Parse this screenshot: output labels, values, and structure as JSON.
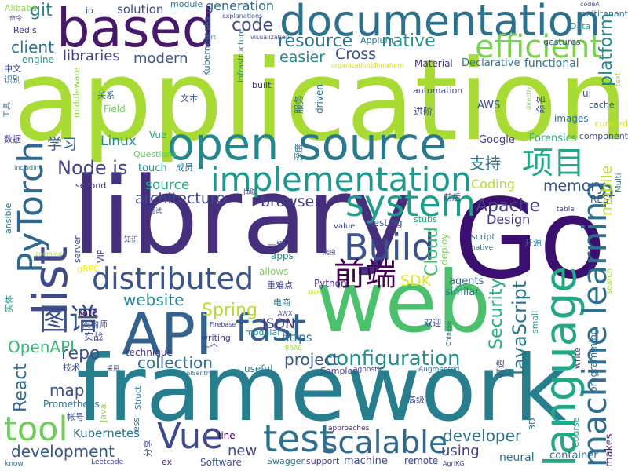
{
  "words": [
    {
      "text": "application",
      "color": "#a8db34"
    },
    {
      "text": "library",
      "color": "#46307e"
    },
    {
      "text": "Go",
      "color": "#3b0f70"
    },
    {
      "text": "framework",
      "color": "#277f8e"
    },
    {
      "text": "web",
      "color": "#4bc16e"
    },
    {
      "text": "documentation",
      "color": "#2c718e"
    },
    {
      "text": "based",
      "color": "#48196b"
    },
    {
      "text": "open",
      "color": "#23888e"
    },
    {
      "text": "source",
      "color": "#2a788e"
    },
    {
      "text": "language",
      "color": "#22a884"
    },
    {
      "text": "API",
      "color": "#33638d"
    },
    {
      "text": "list",
      "color": "#3e4a89"
    },
    {
      "text": "efficient",
      "color": "#7ad151"
    },
    {
      "text": "implementation",
      "color": "#1f988b"
    },
    {
      "text": "machine learning",
      "color": "#2e6f8e"
    },
    {
      "text": "PyTorch",
      "color": "#31688e"
    },
    {
      "text": "Vue",
      "color": "#3e4a89"
    },
    {
      "text": "scalable",
      "color": "#31688e"
    },
    {
      "text": "tool",
      "color": "#6ece58"
    },
    {
      "text": "fast",
      "color": "#355f8d"
    },
    {
      "text": "test",
      "color": "#2c718e"
    },
    {
      "text": "distributed",
      "color": "#39558c"
    },
    {
      "text": "Build",
      "color": "#3b528b"
    },
    {
      "text": "system",
      "color": "#1f9e89"
    },
    {
      "text": "configuration",
      "color": "#21908d"
    },
    {
      "text": "前端",
      "color": "#440154"
    },
    {
      "text": "图谱",
      "color": "#3b528b"
    },
    {
      "text": "项目",
      "color": "#22a884"
    },
    {
      "text": "JavaScript",
      "color": "#2a788e"
    },
    {
      "text": "code",
      "color": "#3e4a89"
    },
    {
      "text": "Node js",
      "color": "#404387"
    },
    {
      "text": "Apache",
      "color": "#433e85"
    },
    {
      "text": "memory",
      "color": "#39558c"
    },
    {
      "text": "platform",
      "color": "#23898e"
    },
    {
      "text": "project",
      "color": "#375a8c"
    },
    {
      "text": "collection",
      "color": "#2e6e8e"
    },
    {
      "text": "development",
      "color": "#38588c"
    },
    {
      "text": "developer",
      "color": "#2d718e"
    },
    {
      "text": "Spring",
      "color": "#b5de2b"
    },
    {
      "text": "website",
      "color": "#25858e"
    },
    {
      "text": "architecture",
      "color": "#3f4889"
    },
    {
      "text": "browser",
      "color": "#433e85"
    },
    {
      "text": "resource",
      "color": "#2b748e"
    },
    {
      "text": "client",
      "color": "#2d718e"
    },
    {
      "text": "React",
      "color": "#31688e"
    },
    {
      "text": "Cloud",
      "color": "#40bd72"
    },
    {
      "text": "Security",
      "color": "#27ad81"
    },
    {
      "text": "Cross",
      "color": "#3b528b"
    },
    {
      "text": "native",
      "color": "#1f958b"
    },
    {
      "text": "git",
      "color": "#23888e"
    },
    {
      "text": "repo",
      "color": "#3e4c8a"
    },
    {
      "text": "mobile",
      "color": "#c2df23"
    },
    {
      "text": "easier",
      "color": "#238a8d"
    },
    {
      "text": "libraries",
      "color": "#414287"
    },
    {
      "text": "modern",
      "color": "#39568c"
    },
    {
      "text": "SDK",
      "color": "#e5e419"
    },
    {
      "text": "OpenAPI",
      "color": "#37b878"
    },
    {
      "text": "map",
      "color": "#3c4f8a"
    },
    {
      "text": "new",
      "color": "#3e4c8a"
    },
    {
      "text": "using",
      "color": "#414287"
    },
    {
      "text": "Design",
      "color": "#443a83"
    },
    {
      "text": "Linux",
      "color": "#228d8d"
    },
    {
      "text": "source",
      "color": "#26ad81"
    },
    {
      "text": "学习",
      "color": "#33638d"
    },
    {
      "text": "支持",
      "color": "#2a788e"
    },
    {
      "text": "JSON",
      "color": "#46337e"
    },
    {
      "text": "https",
      "color": "#2c718e"
    },
    {
      "text": "Coding",
      "color": "#b5de2b"
    },
    {
      "text": "Kubernetes",
      "color": "#2e6e8e"
    },
    {
      "text": "Vue",
      "color": "#25ab82"
    },
    {
      "text": "solution",
      "color": "#3e4a89"
    },
    {
      "text": "generation",
      "color": "#31688e"
    },
    {
      "text": "Google",
      "color": "#453882"
    },
    {
      "text": "Forensics",
      "color": "#27ad81"
    },
    {
      "text": "Material",
      "color": "#46307e"
    },
    {
      "text": "Declarative",
      "color": "#2a788e"
    },
    {
      "text": "functional",
      "color": "#2c718e"
    },
    {
      "text": "engine",
      "color": "#1fa188"
    },
    {
      "text": "AWS",
      "color": "#3b528b"
    },
    {
      "text": "deploy",
      "color": "#7ad151"
    },
    {
      "text": "agents",
      "color": "#31688e"
    },
    {
      "text": "similar",
      "color": "#2c718e"
    },
    {
      "text": "testing",
      "color": "#3b528b"
    },
    {
      "text": "apps",
      "color": "#23888e"
    },
    {
      "text": "allows",
      "color": "#7ad151"
    },
    {
      "text": "technique",
      "color": "#46337e"
    },
    {
      "text": "rate",
      "color": "#440154"
    },
    {
      "text": "ui",
      "color": "#3e4a89"
    },
    {
      "text": "cache",
      "color": "#38588c"
    },
    {
      "text": "touch",
      "color": "#21918c"
    },
    {
      "text": "images",
      "color": "#2d718e"
    },
    {
      "text": "实战",
      "color": "#3f4889"
    },
    {
      "text": "实体",
      "color": "#1f988b"
    },
    {
      "text": "Field",
      "color": "#6ece58"
    },
    {
      "text": "Questions",
      "color": "#5ec962"
    },
    {
      "text": "VIP",
      "color": "#414487"
    },
    {
      "text": "gRPC",
      "color": "#fde725"
    },
    {
      "text": "Redis",
      "color": "#453781"
    },
    {
      "text": "Alibaba",
      "color": "#90d743"
    },
    {
      "text": "io",
      "color": "#33638d"
    },
    {
      "text": "module",
      "color": "#2a788e"
    },
    {
      "text": "stubs",
      "color": "#20a386"
    },
    {
      "text": "value",
      "color": "#404688"
    },
    {
      "text": "REST",
      "color": "#39568c"
    },
    {
      "text": "curated",
      "color": "#d2e21b"
    },
    {
      "text": "search",
      "color": "#a0da39"
    },
    {
      "text": "Multi",
      "color": "#2e6e8e"
    },
    {
      "text": "script",
      "color": "#2e6e8e"
    },
    {
      "text": "Python",
      "color": "#46327e"
    },
    {
      "text": "Prometheus",
      "color": "#2b748e"
    },
    {
      "text": "3D",
      "color": "#2b748e"
    },
    {
      "text": "line",
      "color": "#440154"
    },
    {
      "text": "Software",
      "color": "#3b528b"
    },
    {
      "text": "Swagger",
      "color": "#2d718e"
    },
    {
      "text": "support",
      "color": "#443a83"
    },
    {
      "text": "machine",
      "color": "#3e4a89"
    },
    {
      "text": "remote",
      "color": "#3f4889"
    },
    {
      "text": "neural",
      "color": "#2c718e"
    },
    {
      "text": "container",
      "color": "#31688e"
    },
    {
      "text": "Course",
      "color": "#1fa188"
    },
    {
      "text": "makes",
      "color": "#482878"
    },
    {
      "text": "useful",
      "color": "#2a788e"
    },
    {
      "text": "Samples",
      "color": "#453882"
    },
    {
      "text": "programming",
      "color": "#2e6e8e"
    },
    {
      "text": "write",
      "color": "#433e85"
    },
    {
      "text": "small",
      "color": "#20a486"
    },
    {
      "text": "component",
      "color": "#3e4c8a"
    },
    {
      "text": "modular",
      "color": "#21918c"
    },
    {
      "text": "writing",
      "color": "#453882"
    },
    {
      "text": "ex",
      "color": "#482173"
    },
    {
      "text": "less",
      "color": "#30698e"
    },
    {
      "text": "Java",
      "color": "#90d743"
    },
    {
      "text": "Struct",
      "color": "#2e6e8e"
    },
    {
      "text": "ansible",
      "color": "#2a788e"
    },
    {
      "text": "second",
      "color": "#46337e"
    },
    {
      "text": "server",
      "color": "#3f4889"
    },
    {
      "text": "infrastructure",
      "color": "#24868e"
    },
    {
      "text": "automation",
      "color": "#3e4a89"
    },
    {
      "text": "middleware",
      "color": "#90d743"
    },
    {
      "text": "driven",
      "color": "#2c718e"
    },
    {
      "text": "built",
      "color": "#46337e"
    },
    {
      "text": "googlers",
      "color": "#443a83"
    },
    {
      "text": "Data",
      "color": "#1f988b"
    },
    {
      "text": "table",
      "color": "#3e4a89"
    },
    {
      "text": "native",
      "color": "#2a788e"
    },
    {
      "text": "know",
      "color": "#2d718e"
    },
    {
      "text": "Leetcode",
      "color": "#404387"
    },
    {
      "text": "AgriKG",
      "color": "#3e4a89"
    },
    {
      "text": "Augmented",
      "color": "#2c718e"
    },
    {
      "text": "ToolSentry",
      "color": "#2c718e"
    },
    {
      "text": "agnostic",
      "color": "#414487"
    },
    {
      "text": "approaches",
      "color": "#481f70"
    },
    {
      "text": "Chinese",
      "color": "#31688e"
    },
    {
      "text": "RBAC",
      "color": "#a0da39"
    },
    {
      "text": "Firebase",
      "color": "#3e4a89"
    },
    {
      "text": "AWX",
      "color": "#3e4a89"
    },
    {
      "text": "appAI",
      "color": "#c8e020"
    },
    {
      "text": "zooming",
      "color": "#a8db34"
    },
    {
      "text": "including",
      "color": "#2c718e"
    },
    {
      "text": "organizationsTerraform",
      "color": "#d8e219"
    },
    {
      "text": "directly",
      "color": "#7ad151"
    },
    {
      "text": "Art",
      "color": "#2a788e"
    },
    {
      "text": "visualization",
      "color": "#3e4a89"
    },
    {
      "text": "Appium",
      "color": "#2c718e"
    },
    {
      "text": "explanations",
      "color": "#3b528b"
    },
    {
      "text": "codeA",
      "color": "#3e4a89"
    },
    {
      "text": "text",
      "color": "#b5de2b"
    },
    {
      "text": "gestures",
      "color": "#3e4a89"
    },
    {
      "text": "multitenant",
      "color": "#2c718e"
    },
    {
      "text": "KubernetesAs",
      "color": "#2e6e8e"
    },
    {
      "text": "中文",
      "color": "#3e4a89"
    },
    {
      "text": "识别",
      "color": "#2c718e"
    },
    {
      "text": "工具",
      "color": "#31688e"
    },
    {
      "text": "关系",
      "color": "#2c718e"
    },
    {
      "text": "文本",
      "color": "#3b528b"
    },
    {
      "text": "服务",
      "color": "#2c718e"
    },
    {
      "text": "进阶",
      "color": "#3e4a89"
    },
    {
      "text": "命名",
      "color": "#3e4a89"
    },
    {
      "text": "数据",
      "color": "#46337e"
    },
    {
      "text": "深度",
      "color": "#2c718e"
    },
    {
      "text": "成员",
      "color": "#2e6e8e"
    },
    {
      "text": "前后",
      "color": "#3e4a89"
    },
    {
      "text": "开源",
      "color": "#2c718e"
    },
    {
      "text": "抽取",
      "color": "#3e4a89"
    },
    {
      "text": "面试",
      "color": "#3e4a89"
    },
    {
      "text": "知识",
      "color": "#3b528b"
    },
    {
      "text": "一键",
      "color": "#3e4a89"
    },
    {
      "text": "爬虫",
      "color": "#3e4a89"
    },
    {
      "text": "重难点",
      "color": "#3e4a89"
    },
    {
      "text": "电商",
      "color": "#2a788e"
    },
    {
      "text": "双迎",
      "color": "#3e4a89"
    },
    {
      "text": "一个",
      "color": "#3e4a89"
    },
    {
      "text": "架构师",
      "color": "#3e4a89"
    },
    {
      "text": "技术",
      "color": "#3e4a89"
    },
    {
      "text": "采用",
      "color": "#3e4a89"
    },
    {
      "text": "帐号",
      "color": "#3e4a89"
    },
    {
      "text": "高级",
      "color": "#3e4a89"
    },
    {
      "text": "打造",
      "color": "#3e4a89"
    },
    {
      "text": "分享",
      "color": "#3e4a89"
    },
    {
      "text": "命令",
      "color": "#3e4a89"
    },
    {
      "text": "权限",
      "color": "#2c718e"
    },
    {
      "text": "基于",
      "color": "#2c718e"
    },
    {
      "text": "路上",
      "color": "#3e4a89"
    }
  ]
}
